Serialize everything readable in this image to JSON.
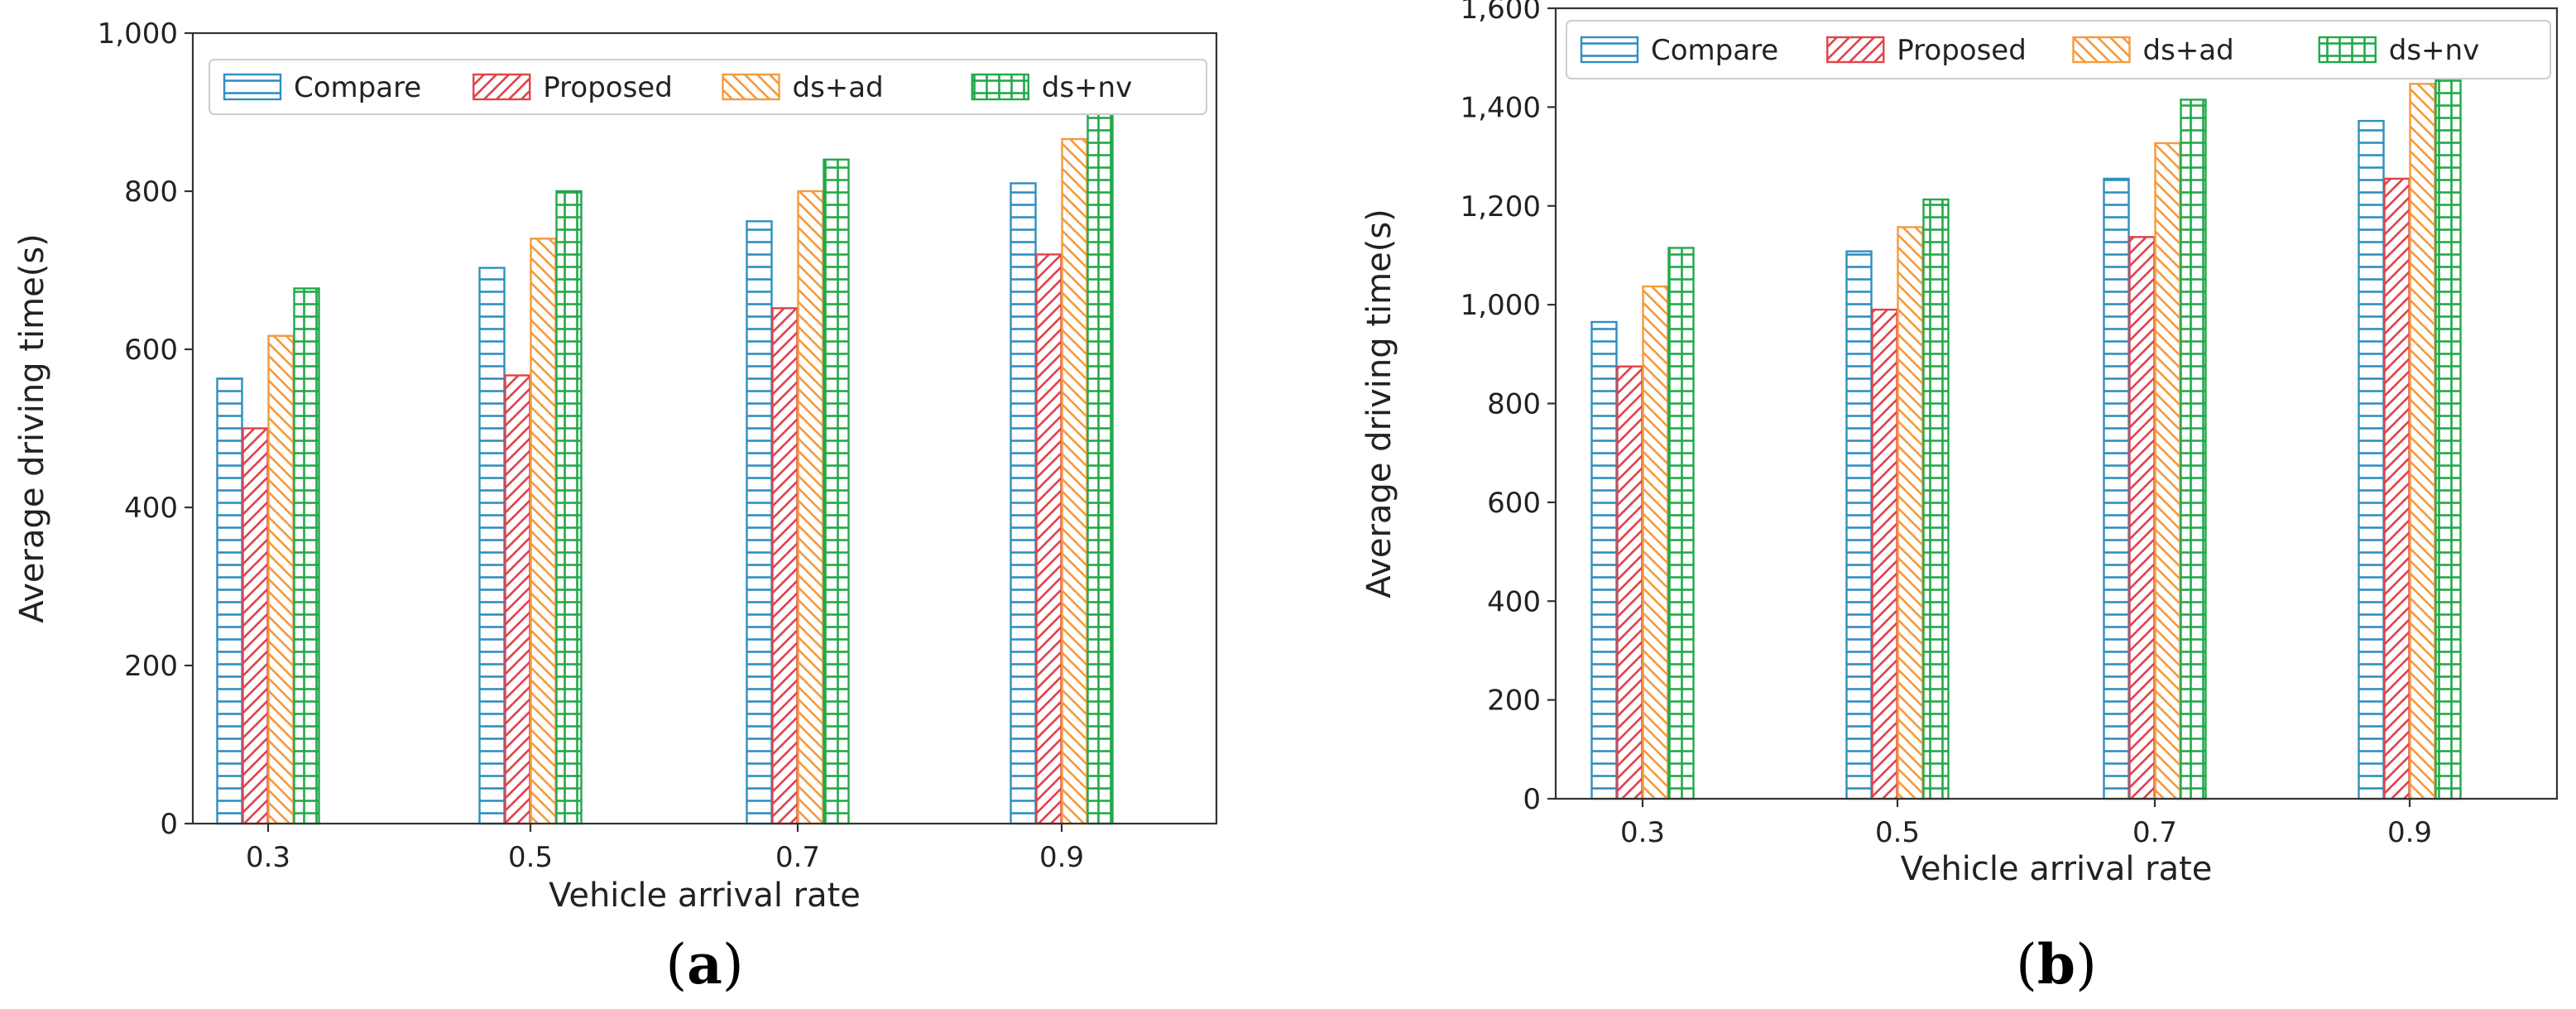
{
  "chart_data": [
    {
      "type": "bar",
      "panel_label": "a",
      "panel_open": "(",
      "panel_close": ")",
      "title": "",
      "xlabel": "Vehicle arrival rate",
      "ylabel": "Average driving time(s)",
      "categories": [
        "0.3",
        "0.5",
        "0.7",
        "0.9"
      ],
      "ylim": [
        0,
        1000
      ],
      "yticks": [
        0,
        200,
        400,
        600,
        800,
        1000
      ],
      "ytick_labels": [
        "0",
        "200",
        "400",
        "600",
        "800",
        "1,000"
      ],
      "grid": false,
      "legend_position": "top",
      "series": [
        {
          "name": "Compare",
          "color": "#2f8fbf",
          "hatch": "horizontal",
          "values": [
            563,
            703,
            762,
            810
          ]
        },
        {
          "name": "Proposed",
          "color": "#e0424b",
          "hatch": "forward-diagonal",
          "values": [
            500,
            567,
            652,
            720
          ]
        },
        {
          "name": "ds+ad",
          "color": "#f59a3c",
          "hatch": "back-diagonal",
          "values": [
            617,
            740,
            800,
            866
          ]
        },
        {
          "name": "ds+nv",
          "color": "#22a84a",
          "hatch": "grid",
          "values": [
            677,
            800,
            840,
            910
          ]
        }
      ]
    },
    {
      "type": "bar",
      "panel_label": "b",
      "panel_open": "(",
      "panel_close": ")",
      "title": "",
      "xlabel": "Vehicle arrival rate",
      "ylabel": "Average driving time(s)",
      "categories": [
        "0.3",
        "0.5",
        "0.7",
        "0.9"
      ],
      "ylim": [
        0,
        1600
      ],
      "yticks": [
        0,
        200,
        400,
        600,
        800,
        1000,
        1200,
        1400,
        1600
      ],
      "ytick_labels": [
        "0",
        "200",
        "400",
        "600",
        "800",
        "1,000",
        "1,200",
        "1,400",
        "1,600"
      ],
      "grid": false,
      "legend_position": "top",
      "series": [
        {
          "name": "Compare",
          "color": "#2f8fbf",
          "hatch": "horizontal",
          "values": [
            965,
            1108,
            1255,
            1372
          ]
        },
        {
          "name": "Proposed",
          "color": "#e0424b",
          "hatch": "forward-diagonal",
          "values": [
            875,
            990,
            1137,
            1255
          ]
        },
        {
          "name": "ds+ad",
          "color": "#f59a3c",
          "hatch": "back-diagonal",
          "values": [
            1037,
            1157,
            1327,
            1447
          ]
        },
        {
          "name": "ds+nv",
          "color": "#22a84a",
          "hatch": "grid",
          "values": [
            1115,
            1213,
            1415,
            1522
          ]
        }
      ]
    }
  ]
}
